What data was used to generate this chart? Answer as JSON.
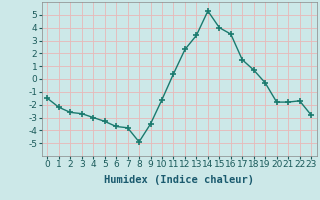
{
  "x": [
    0,
    1,
    2,
    3,
    4,
    5,
    6,
    7,
    8,
    9,
    10,
    11,
    12,
    13,
    14,
    15,
    16,
    17,
    18,
    19,
    20,
    21,
    22,
    23
  ],
  "y": [
    -1.5,
    -2.2,
    -2.6,
    -2.7,
    -3.0,
    -3.3,
    -3.7,
    -3.8,
    -4.9,
    -3.5,
    -1.6,
    0.4,
    2.3,
    3.4,
    5.3,
    4.0,
    3.5,
    1.5,
    0.7,
    -0.3,
    -1.8,
    -1.8,
    -1.7,
    -2.8
  ],
  "xlabel": "Humidex (Indice chaleur)",
  "ylim": [
    -6,
    6
  ],
  "xlim": [
    -0.5,
    23.5
  ],
  "yticks": [
    -5,
    -4,
    -3,
    -2,
    -1,
    0,
    1,
    2,
    3,
    4,
    5
  ],
  "line_color": "#1a7a6e",
  "marker": "+",
  "marker_size": 4,
  "bg_color": "#cce8e8",
  "grid_color": "#e8b8b8",
  "tick_label_fontsize": 6.5,
  "xlabel_fontsize": 7.5,
  "line_width": 1.0
}
